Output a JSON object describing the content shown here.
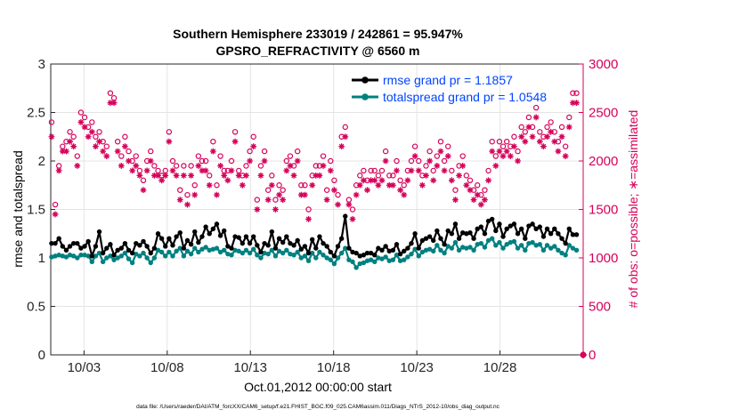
{
  "title_line1": "Southern Hemisphere 233019 / 242861 = 95.947%",
  "title_line2": "GPSRO_REFRACTIVITY @ 6560 m",
  "footer": "data file: /Users/raeder/DAI/ATM_forcXX/CAM6_setup/f.e21.FHIST_BGC.f09_025.CAM6assim.011/Diags_NTrS_2012-10/obs_diag_output.nc",
  "colors": {
    "rmse": "#000000",
    "spread": "#008080",
    "obs": "#d6005a",
    "legend_text": "#0044ff",
    "grid": "#e4e4e4"
  },
  "chart_data": {
    "type": "line",
    "xlabel": "Oct.01,2012 00:00:00 start",
    "ylabel_left": "rmse and totalspread",
    "ylabel_right": "# of obs: o=possible; ∗=assimilated",
    "x_ticks": [
      {
        "day": 3,
        "label": "10/03"
      },
      {
        "day": 8,
        "label": "10/08"
      },
      {
        "day": 13,
        "label": "10/13"
      },
      {
        "day": 18,
        "label": "10/18"
      },
      {
        "day": 23,
        "label": "10/23"
      },
      {
        "day": 28,
        "label": "10/28"
      }
    ],
    "xlim": [
      1,
      33
    ],
    "ylim_left": [
      0,
      3
    ],
    "left_ticks": [
      "0",
      "0.5",
      "1",
      "1.5",
      "2",
      "2.5",
      "3"
    ],
    "ylim_right": [
      0,
      3000
    ],
    "right_ticks": [
      "0",
      "500",
      "1000",
      "1500",
      "2000",
      "2500",
      "3000"
    ],
    "grid": true,
    "legend_position": "top-right",
    "series": [
      {
        "name": "rmse grand pr = 1.1857",
        "marker": "circle",
        "values": [
          1.15,
          1.15,
          1.2,
          1.12,
          1.08,
          1.12,
          1.15,
          1.15,
          1.1,
          1.12,
          1.17,
          1.02,
          1.12,
          1.27,
          1.05,
          1.1,
          1.14,
          1.03,
          1.08,
          1.1,
          1.15,
          1.08,
          1.05,
          1.15,
          1.13,
          1.17,
          1.12,
          1.05,
          1.1,
          1.25,
          1.2,
          1.12,
          1.2,
          1.13,
          1.22,
          1.26,
          1.1,
          1.18,
          1.14,
          1.27,
          1.16,
          1.22,
          1.32,
          1.25,
          1.3,
          1.35,
          1.23,
          1.28,
          1.12,
          1.1,
          1.22,
          1.21,
          1.15,
          1.22,
          1.15,
          1.22,
          1.13,
          1.06,
          1.15,
          1.13,
          1.27,
          1.1,
          1.2,
          1.16,
          1.22,
          1.15,
          1.13,
          1.18,
          1.09,
          1.12,
          1.05,
          1.19,
          1.1,
          1.22,
          1.15,
          1.12,
          1.06,
          1.02,
          1.12,
          1.2,
          1.43,
          1.1,
          1.06,
          1.05,
          1.02,
          1.03,
          1.05,
          1.05,
          1.03,
          1.1,
          1.08,
          1.12,
          1.07,
          1.08,
          1.14,
          1.04,
          1.07,
          1.1,
          1.15,
          1.25,
          1.1,
          1.18,
          1.2,
          1.22,
          1.18,
          1.28,
          1.2,
          1.14,
          1.28,
          1.25,
          1.35,
          1.2,
          1.26,
          1.25,
          1.26,
          1.2,
          1.3,
          1.32,
          1.25,
          1.38,
          1.4,
          1.28,
          1.35,
          1.22,
          1.3,
          1.33,
          1.35,
          1.25,
          1.3,
          1.2,
          1.33,
          1.35,
          1.3,
          1.32,
          1.22,
          1.3,
          1.25,
          1.3,
          1.25,
          1.2,
          1.15,
          1.3,
          1.24,
          1.24
        ]
      },
      {
        "name": "totalspread grand pr = 1.0548",
        "marker": "circle",
        "values": [
          1.01,
          1.02,
          1.03,
          1.02,
          1.01,
          1.03,
          1.02,
          1.0,
          1.03,
          1.03,
          1.02,
          0.96,
          1.02,
          1.05,
          0.96,
          1.0,
          1.02,
          0.98,
          1.0,
          1.02,
          1.05,
          0.99,
          0.95,
          1.04,
          1.02,
          1.05,
          1.0,
          0.95,
          1.0,
          1.08,
          1.06,
          1.02,
          1.06,
          1.02,
          1.07,
          1.1,
          1.02,
          1.07,
          1.04,
          1.1,
          1.06,
          1.09,
          1.11,
          1.08,
          1.09,
          1.1,
          1.06,
          1.08,
          1.04,
          1.03,
          1.08,
          1.07,
          1.05,
          1.08,
          1.05,
          1.09,
          1.03,
          1.0,
          1.05,
          1.04,
          1.08,
          1.02,
          1.07,
          1.05,
          1.08,
          1.04,
          1.03,
          1.06,
          1.0,
          1.02,
          0.97,
          1.05,
          1.0,
          1.06,
          1.03,
          1.0,
          0.98,
          0.94,
          1.0,
          1.05,
          1.1,
          0.98,
          0.96,
          0.9,
          0.94,
          0.95,
          0.97,
          0.98,
          0.96,
          1.0,
          0.99,
          1.01,
          0.97,
          0.98,
          1.03,
          0.97,
          0.98,
          1.01,
          1.04,
          1.09,
          1.02,
          1.06,
          1.08,
          1.09,
          1.07,
          1.13,
          1.08,
          1.05,
          1.12,
          1.1,
          1.16,
          1.08,
          1.11,
          1.1,
          1.11,
          1.08,
          1.14,
          1.15,
          1.11,
          1.18,
          1.2,
          1.13,
          1.16,
          1.1,
          1.14,
          1.16,
          1.17,
          1.1,
          1.13,
          1.08,
          1.15,
          1.16,
          1.13,
          1.14,
          1.08,
          1.13,
          1.1,
          1.12,
          1.08,
          1.05,
          1.03,
          1.13,
          1.1,
          1.08
        ]
      },
      {
        "name": "possible",
        "marker": "o",
        "axis": "right",
        "values": [
          2400,
          1550,
          1950,
          2150,
          2200,
          2300,
          2250,
          2050,
          2500,
          2450,
          2350,
          2400,
          2250,
          2300,
          2200,
          2150,
          2700,
          2650,
          2200,
          2050,
          2250,
          2100,
          2000,
          2050,
          1900,
          1800,
          2000,
          2100,
          1950,
          1900,
          1850,
          1900,
          2300,
          2000,
          1950,
          1700,
          1950,
          1650,
          1950,
          1750,
          2050,
          2000,
          2000,
          1850,
          2200,
          1750,
          2050,
          1900,
          1900,
          2000,
          2300,
          1900,
          1850,
          1950,
          2100,
          2250,
          1600,
          1950,
          2100,
          1700,
          1850,
          1600,
          1750,
          1700,
          2000,
          2050,
          1950,
          2100,
          1750,
          1750,
          1500,
          1850,
          1950,
          1950,
          2050,
          1700,
          2000,
          1800,
          1650,
          2250,
          2350,
          1600,
          1500,
          1750,
          1850,
          1900,
          1800,
          1900,
          1900,
          1850,
          1900,
          2100,
          1850,
          1850,
          2000,
          1800,
          1750,
          1900,
          2000,
          2150,
          2000,
          1850,
          1950,
          2100,
          1900,
          2050,
          2200,
          2000,
          2150,
          1900,
          1700,
          1950,
          2050,
          1850,
          1800,
          1700,
          1750,
          1650,
          1700,
          1900,
          2200,
          2050,
          2200,
          2150,
          2200,
          2150,
          2250,
          2100,
          2350,
          2300,
          2450,
          2350,
          2550,
          2300,
          2250,
          2350,
          2400,
          2300,
          2200,
          2350,
          2150,
          2450,
          2700,
          2700
        ]
      },
      {
        "name": "assimilated",
        "marker": "*",
        "axis": "right",
        "values": [
          2250,
          1450,
          1900,
          2100,
          2100,
          2200,
          2150,
          1950,
          2400,
          2350,
          2250,
          2300,
          2150,
          2200,
          2100,
          2050,
          2600,
          2600,
          2100,
          1950,
          2150,
          2000,
          1900,
          1950,
          1850,
          1700,
          1900,
          2000,
          1850,
          1850,
          1800,
          1850,
          2200,
          1900,
          1850,
          1600,
          1850,
          1550,
          1850,
          1650,
          1950,
          1900,
          1900,
          1750,
          2100,
          1650,
          1950,
          1850,
          1800,
          1900,
          2200,
          1850,
          1750,
          1850,
          2000,
          2150,
          1500,
          1850,
          2000,
          1600,
          1750,
          1500,
          1650,
          1600,
          1900,
          1950,
          1850,
          2000,
          1650,
          1650,
          1400,
          1750,
          1850,
          1850,
          1950,
          1600,
          1900,
          1700,
          1550,
          2150,
          2250,
          1550,
          1400,
          1650,
          1750,
          1800,
          1700,
          1800,
          1800,
          1750,
          1800,
          2000,
          1750,
          1750,
          1900,
          1700,
          1650,
          1800,
          1900,
          2050,
          1900,
          1750,
          1850,
          2000,
          1800,
          1950,
          2100,
          1900,
          2050,
          1800,
          1600,
          1850,
          1950,
          1750,
          1700,
          1600,
          1650,
          1550,
          1600,
          1800,
          2100,
          1950,
          2100,
          2050,
          2100,
          2050,
          2150,
          2000,
          2250,
          2200,
          2350,
          2250,
          2450,
          2200,
          2150,
          2250,
          2300,
          2200,
          2100,
          2250,
          2050,
          2350,
          2600,
          2600
        ]
      }
    ],
    "end_marker": {
      "day": 33,
      "value": 0
    }
  }
}
